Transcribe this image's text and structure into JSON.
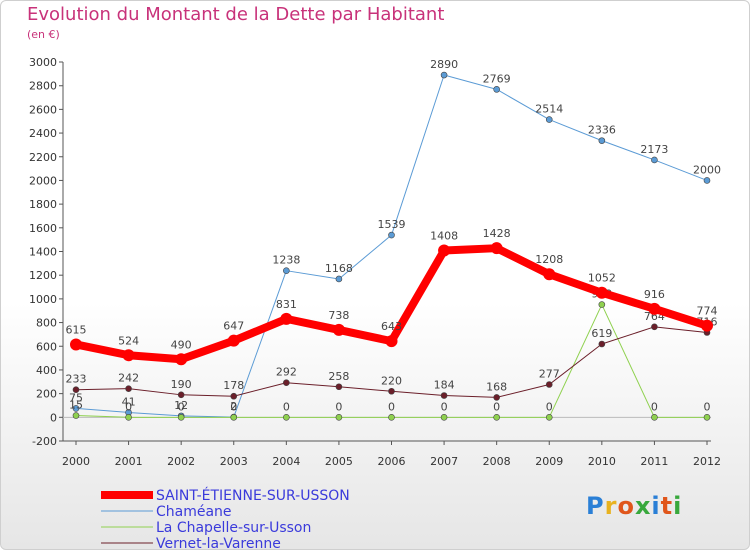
{
  "title": "Evolution du Montant de la Dette par Habitant",
  "subtitle": "(en €)",
  "logo": {
    "text": "Proxiti",
    "colors": [
      "#2a7fd6",
      "#e8b21f",
      "#e0561b",
      "#38a83c",
      "#2a7fd6",
      "#e0561b",
      "#38a83c"
    ]
  },
  "chart_data": {
    "type": "line",
    "x": [
      "2000",
      "2001",
      "2002",
      "2003",
      "2004",
      "2005",
      "2006",
      "2007",
      "2008",
      "2009",
      "2010",
      "2011",
      "2012"
    ],
    "ylim": [
      -200,
      3000
    ],
    "yticks": [
      -200,
      0,
      200,
      400,
      600,
      800,
      1000,
      1200,
      1400,
      1600,
      1800,
      2000,
      2200,
      2400,
      2600,
      2800,
      3000
    ],
    "grid": false,
    "legend_position": "bottom-left",
    "series": [
      {
        "name": "Chaméane",
        "color": "#5b9bd5",
        "width": 1,
        "values": [
          75,
          41,
          12,
          2,
          1238,
          1168,
          1539,
          2890,
          2769,
          2514,
          2336,
          2173,
          2000
        ],
        "labels": [
          "75",
          "41",
          "12",
          "2",
          "1238",
          "1168",
          "1539",
          "2890",
          "2769",
          "2514",
          "2336",
          "2173",
          "2000"
        ]
      },
      {
        "name": "La Chapelle-sur-Usson",
        "color": "#8fd14f",
        "width": 1,
        "values": [
          15,
          0,
          0,
          0,
          0,
          0,
          0,
          0,
          0,
          0,
          952,
          0,
          0
        ],
        "labels": [
          "15",
          "0",
          "0",
          "0",
          "0",
          "0",
          "0",
          "0",
          "0",
          "0",
          "952",
          "0",
          "0"
        ]
      },
      {
        "name": "Vernet-la-Varenne",
        "color": "#6b1f2a",
        "width": 1,
        "values": [
          233,
          242,
          190,
          178,
          292,
          258,
          220,
          184,
          168,
          277,
          619,
          764,
          716
        ],
        "labels": [
          "233",
          "242",
          "190",
          "178",
          "292",
          "258",
          "220",
          "184",
          "168",
          "277",
          "619",
          "764",
          "716"
        ]
      },
      {
        "name": "SAINT-ÉTIENNE-SUR-USSON",
        "color": "#ff0000",
        "width": 8,
        "values": [
          615,
          524,
          490,
          647,
          831,
          738,
          643,
          1408,
          1428,
          1208,
          1052,
          916,
          774
        ],
        "labels": [
          "615",
          "524",
          "490",
          "647",
          "831",
          "738",
          "643",
          "1408",
          "1428",
          "1208",
          "1052",
          "916",
          "774"
        ]
      }
    ],
    "legend": [
      {
        "name": "SAINT-ÉTIENNE-SUR-USSON",
        "color": "#ff0000",
        "width": 8
      },
      {
        "name": "Chaméane",
        "color": "#5b9bd5",
        "width": 1
      },
      {
        "name": "La Chapelle-sur-Usson",
        "color": "#8fd14f",
        "width": 1
      },
      {
        "name": "Vernet-la-Varenne",
        "color": "#6b1f2a",
        "width": 1
      }
    ]
  }
}
